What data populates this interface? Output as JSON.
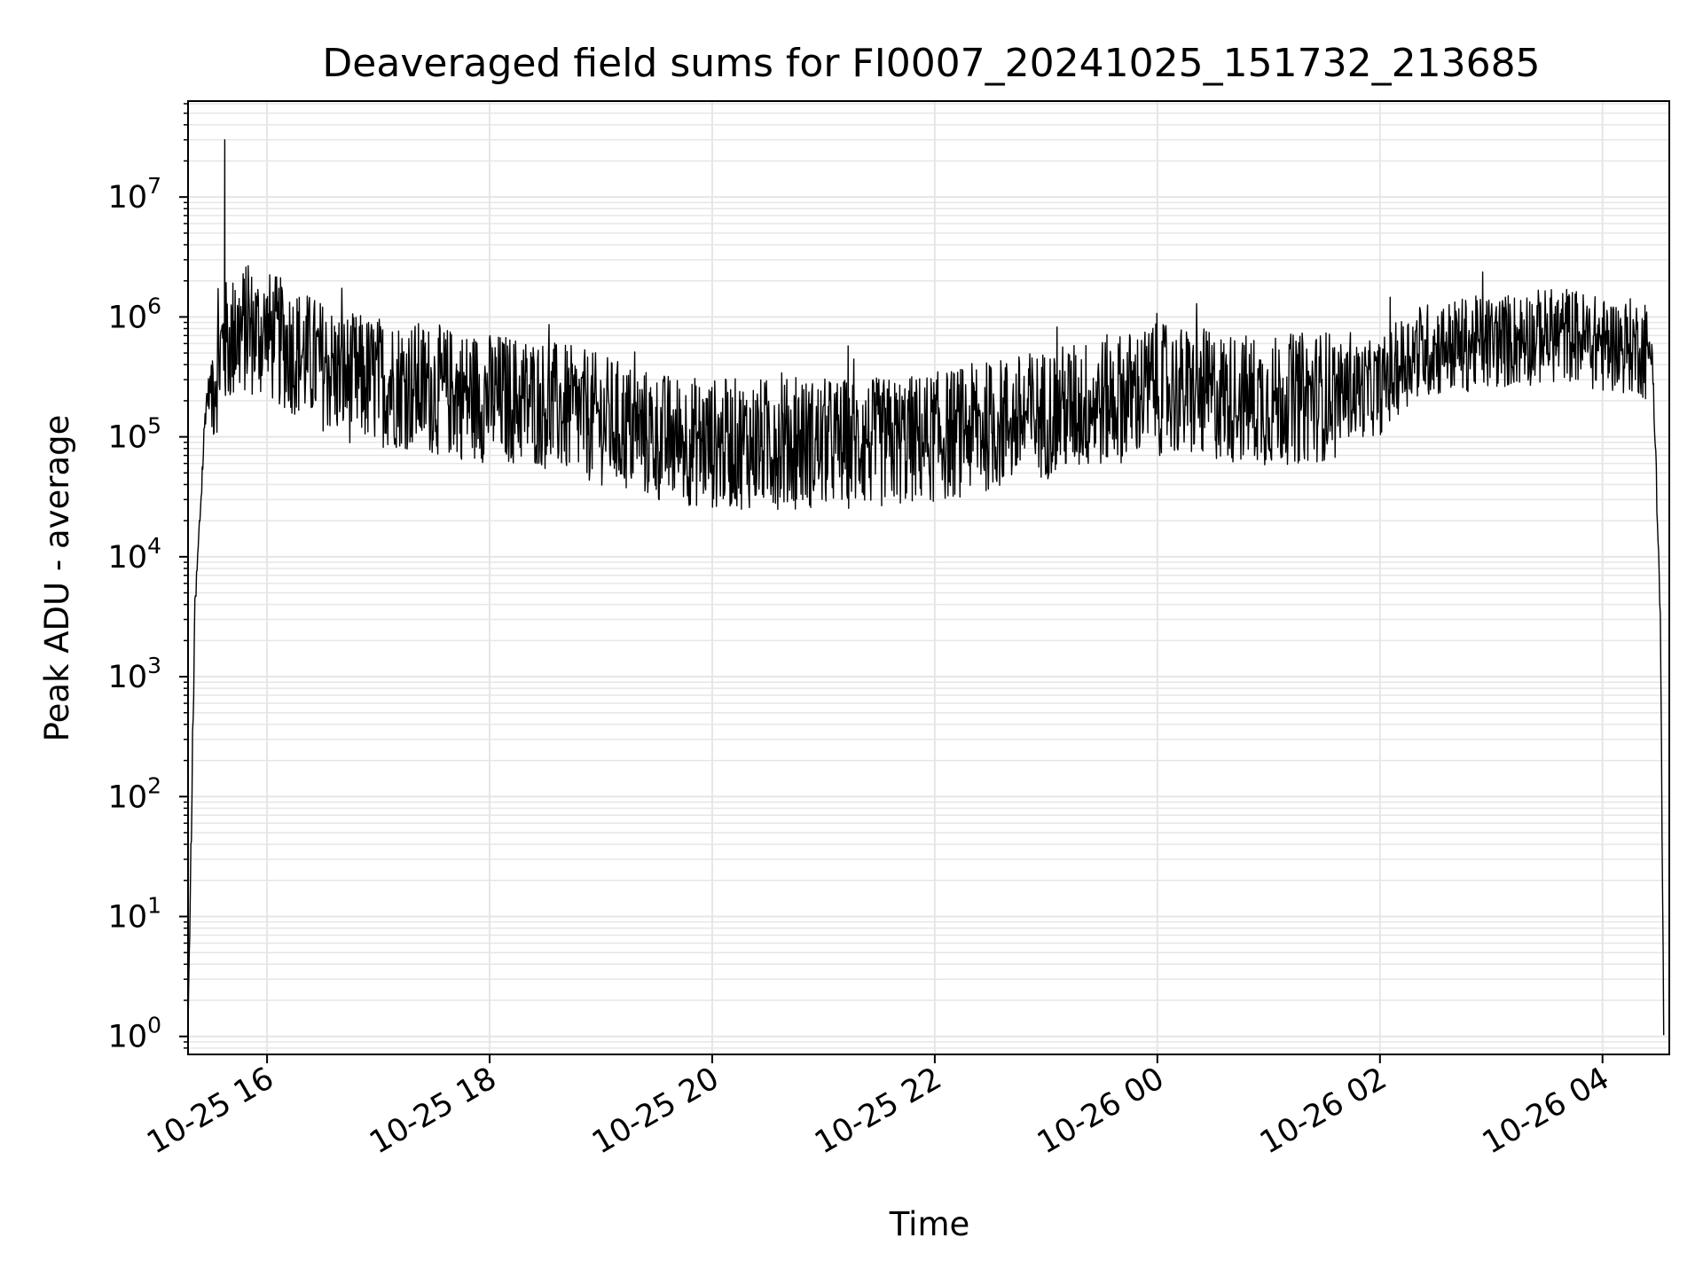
{
  "chart_data": {
    "type": "line",
    "title": "Deaveraged field sums for FI0007_20241025_151732_213685",
    "xlabel": "Time",
    "ylabel": "Peak ADU - average",
    "y_scale": "log",
    "ylim_exponents": [
      -0.15,
      7.8
    ],
    "x_ticks": [
      "10-25 16",
      "10-25 18",
      "10-25 20",
      "10-25 22",
      "10-26 00",
      "10-26 02",
      "10-26 04"
    ],
    "y_ticks": [
      {
        "base": "10",
        "exp": "0"
      },
      {
        "base": "10",
        "exp": "1"
      },
      {
        "base": "10",
        "exp": "2"
      },
      {
        "base": "10",
        "exp": "3"
      },
      {
        "base": "10",
        "exp": "4"
      },
      {
        "base": "10",
        "exp": "5"
      },
      {
        "base": "10",
        "exp": "6"
      },
      {
        "base": "10",
        "exp": "7"
      }
    ],
    "grid": true,
    "line_color": "#000000",
    "grid_color": "#e6e6e6",
    "series": [
      {
        "x_hours": [
          15.29,
          15.35,
          15.45,
          15.6,
          15.8,
          16.0,
          16.3,
          16.7,
          17.2,
          17.8,
          18.4,
          19.0,
          19.5,
          20.0,
          20.5,
          21.0,
          21.5,
          22.0,
          22.5,
          23.0,
          23.5,
          24.0,
          24.5,
          25.0,
          25.5,
          26.0,
          26.3,
          26.7,
          27.2,
          27.7,
          28.0,
          28.3,
          28.45,
          28.52,
          28.55
        ],
        "y_log10": [
          0.0,
          3.5,
          5.3,
          5.8,
          5.95,
          5.9,
          5.75,
          5.55,
          5.5,
          5.4,
          5.35,
          5.2,
          5.05,
          5.0,
          5.0,
          5.0,
          5.0,
          5.05,
          5.15,
          5.25,
          5.35,
          5.45,
          5.4,
          5.35,
          5.4,
          5.45,
          5.75,
          5.8,
          5.85,
          5.9,
          5.8,
          5.8,
          5.7,
          3.5,
          0.0
        ],
        "peak": {
          "x_hours": 15.62,
          "y": 30000000
        }
      }
    ]
  }
}
